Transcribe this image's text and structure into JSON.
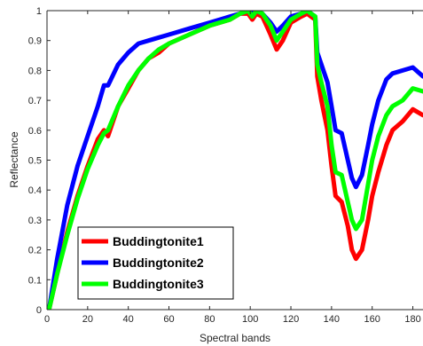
{
  "chart_data": {
    "type": "line",
    "title": "",
    "xlabel": "Spectral bands",
    "ylabel": "Reflectance",
    "xlim": [
      0,
      185
    ],
    "ylim": [
      0,
      1
    ],
    "x_ticks": [
      0,
      20,
      40,
      60,
      80,
      100,
      120,
      140,
      160,
      180
    ],
    "y_ticks": [
      0,
      0.1,
      0.2,
      0.3,
      0.4,
      0.5,
      0.6,
      0.7,
      0.8,
      0.9,
      1
    ],
    "grid": false,
    "legend_position": "bottom-left",
    "series": [
      {
        "name": "Buddingtonite1",
        "color": "#ff0000",
        "x": [
          1,
          5,
          10,
          15,
          20,
          25,
          28,
          30,
          35,
          40,
          45,
          50,
          55,
          60,
          70,
          80,
          90,
          95,
          99,
          101,
          103,
          106,
          110,
          113,
          116,
          120,
          125,
          128,
          130,
          132,
          133,
          135,
          138,
          140,
          142,
          145,
          148,
          150,
          152,
          155,
          158,
          160,
          163,
          167,
          170,
          175,
          180,
          185
        ],
        "y": [
          0.0,
          0.12,
          0.26,
          0.38,
          0.48,
          0.57,
          0.6,
          0.58,
          0.68,
          0.74,
          0.8,
          0.84,
          0.86,
          0.89,
          0.92,
          0.95,
          0.97,
          0.99,
          0.99,
          0.97,
          0.99,
          0.98,
          0.92,
          0.87,
          0.9,
          0.96,
          0.98,
          0.99,
          0.98,
          0.97,
          0.78,
          0.7,
          0.6,
          0.48,
          0.38,
          0.36,
          0.28,
          0.2,
          0.17,
          0.2,
          0.3,
          0.38,
          0.46,
          0.55,
          0.6,
          0.63,
          0.67,
          0.65
        ]
      },
      {
        "name": "Buddingtonite2",
        "color": "#0000ff",
        "x": [
          1,
          5,
          10,
          15,
          20,
          25,
          28,
          30,
          35,
          40,
          45,
          50,
          55,
          60,
          70,
          80,
          90,
          95,
          99,
          101,
          103,
          106,
          110,
          113,
          116,
          120,
          125,
          128,
          130,
          132,
          133,
          135,
          138,
          140,
          142,
          145,
          148,
          150,
          152,
          155,
          158,
          160,
          163,
          167,
          170,
          175,
          180,
          185
        ],
        "y": [
          0.0,
          0.17,
          0.35,
          0.48,
          0.58,
          0.68,
          0.75,
          0.75,
          0.82,
          0.86,
          0.89,
          0.9,
          0.91,
          0.92,
          0.94,
          0.96,
          0.98,
          0.99,
          1.0,
          0.99,
          1.0,
          0.99,
          0.96,
          0.93,
          0.95,
          0.98,
          0.99,
          1.0,
          0.99,
          0.98,
          0.86,
          0.82,
          0.76,
          0.68,
          0.6,
          0.59,
          0.5,
          0.44,
          0.41,
          0.45,
          0.55,
          0.62,
          0.7,
          0.77,
          0.79,
          0.8,
          0.81,
          0.78
        ]
      },
      {
        "name": "Buddingtonite3",
        "color": "#00ff00",
        "x": [
          1,
          5,
          10,
          15,
          20,
          25,
          28,
          30,
          35,
          40,
          45,
          50,
          55,
          60,
          70,
          80,
          90,
          95,
          99,
          101,
          103,
          106,
          110,
          113,
          116,
          120,
          125,
          128,
          130,
          132,
          133,
          135,
          138,
          140,
          142,
          145,
          148,
          150,
          152,
          155,
          158,
          160,
          163,
          167,
          170,
          175,
          180,
          185
        ],
        "y": [
          0.0,
          0.12,
          0.25,
          0.37,
          0.47,
          0.55,
          0.59,
          0.6,
          0.68,
          0.75,
          0.8,
          0.84,
          0.87,
          0.89,
          0.92,
          0.95,
          0.97,
          0.99,
          1.0,
          0.98,
          1.0,
          0.99,
          0.95,
          0.9,
          0.93,
          0.97,
          0.99,
          1.0,
          0.99,
          0.98,
          0.82,
          0.76,
          0.68,
          0.55,
          0.46,
          0.45,
          0.36,
          0.3,
          0.27,
          0.3,
          0.42,
          0.5,
          0.58,
          0.65,
          0.68,
          0.7,
          0.74,
          0.73
        ]
      }
    ]
  }
}
